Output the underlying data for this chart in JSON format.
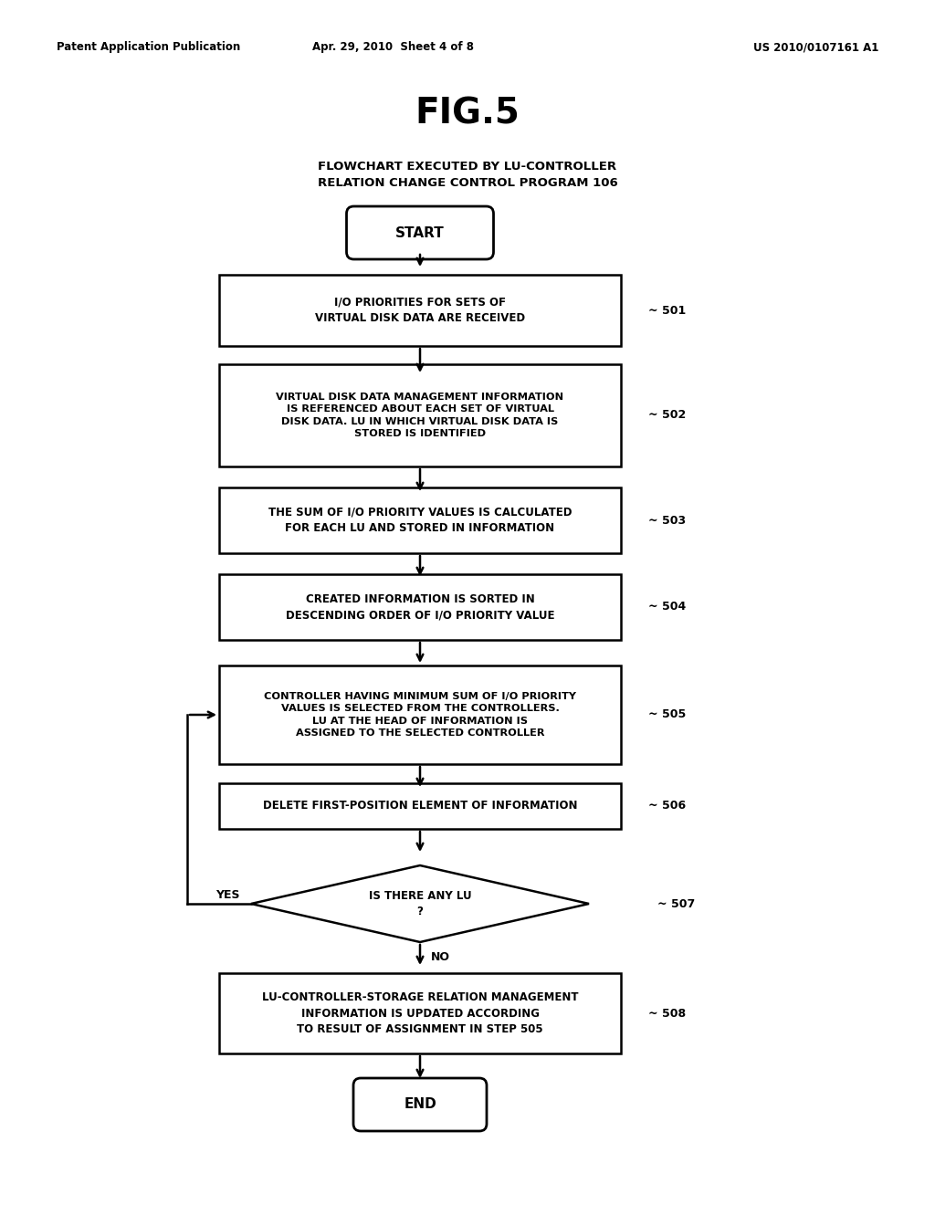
{
  "bg_color": "#ffffff",
  "header_left": "Patent Application Publication",
  "header_mid": "Apr. 29, 2010  Sheet 4 of 8",
  "header_right": "US 2010/0107161 A1",
  "fig_title": "FIG.5",
  "subtitle_line1": "FLOWCHART EXECUTED BY LU-CONTROLLER",
  "subtitle_line2": "RELATION CHANGE CONTROL PROGRAM 106",
  "start_label": "START",
  "end_label": "END",
  "box_501": "I/O PRIORITIES FOR SETS OF\nVIRTUAL DISK DATA ARE RECEIVED",
  "box_502": "VIRTUAL DISK DATA MANAGEMENT INFORMATION\nIS REFERENCED ABOUT EACH SET OF VIRTUAL\nDISK DATA. LU IN WHICH VIRTUAL DISK DATA IS\nSTORED IS IDENTIFIED",
  "box_503": "THE SUM OF I/O PRIORITY VALUES IS CALCULATED\nFOR EACH LU AND STORED IN INFORMATION",
  "box_504": "CREATED INFORMATION IS SORTED IN\nDESCENDING ORDER OF I/O PRIORITY VALUE",
  "box_505": "CONTROLLER HAVING MINIMUM SUM OF I/O PRIORITY\nVALUES IS SELECTED FROM THE CONTROLLERS.\nLU AT THE HEAD OF INFORMATION IS\nASSIGNED TO THE SELECTED CONTROLLER",
  "box_506": "DELETE FIRST-POSITION ELEMENT OF INFORMATION",
  "box_507": "IS THERE ANY LU\n?",
  "box_508": "LU-CONTROLLER-STORAGE RELATION MANAGEMENT\nINFORMATION IS UPDATED ACCORDING\nTO RESULT OF ASSIGNMENT IN STEP 505",
  "tag_501": "~ 501",
  "tag_502": "~ 502",
  "tag_503": "~ 503",
  "tag_504": "~ 504",
  "tag_505": "~ 505",
  "tag_506": "~ 506",
  "tag_507": "~ 507",
  "tag_508": "~ 508",
  "yes_label": "YES",
  "no_label": "NO"
}
